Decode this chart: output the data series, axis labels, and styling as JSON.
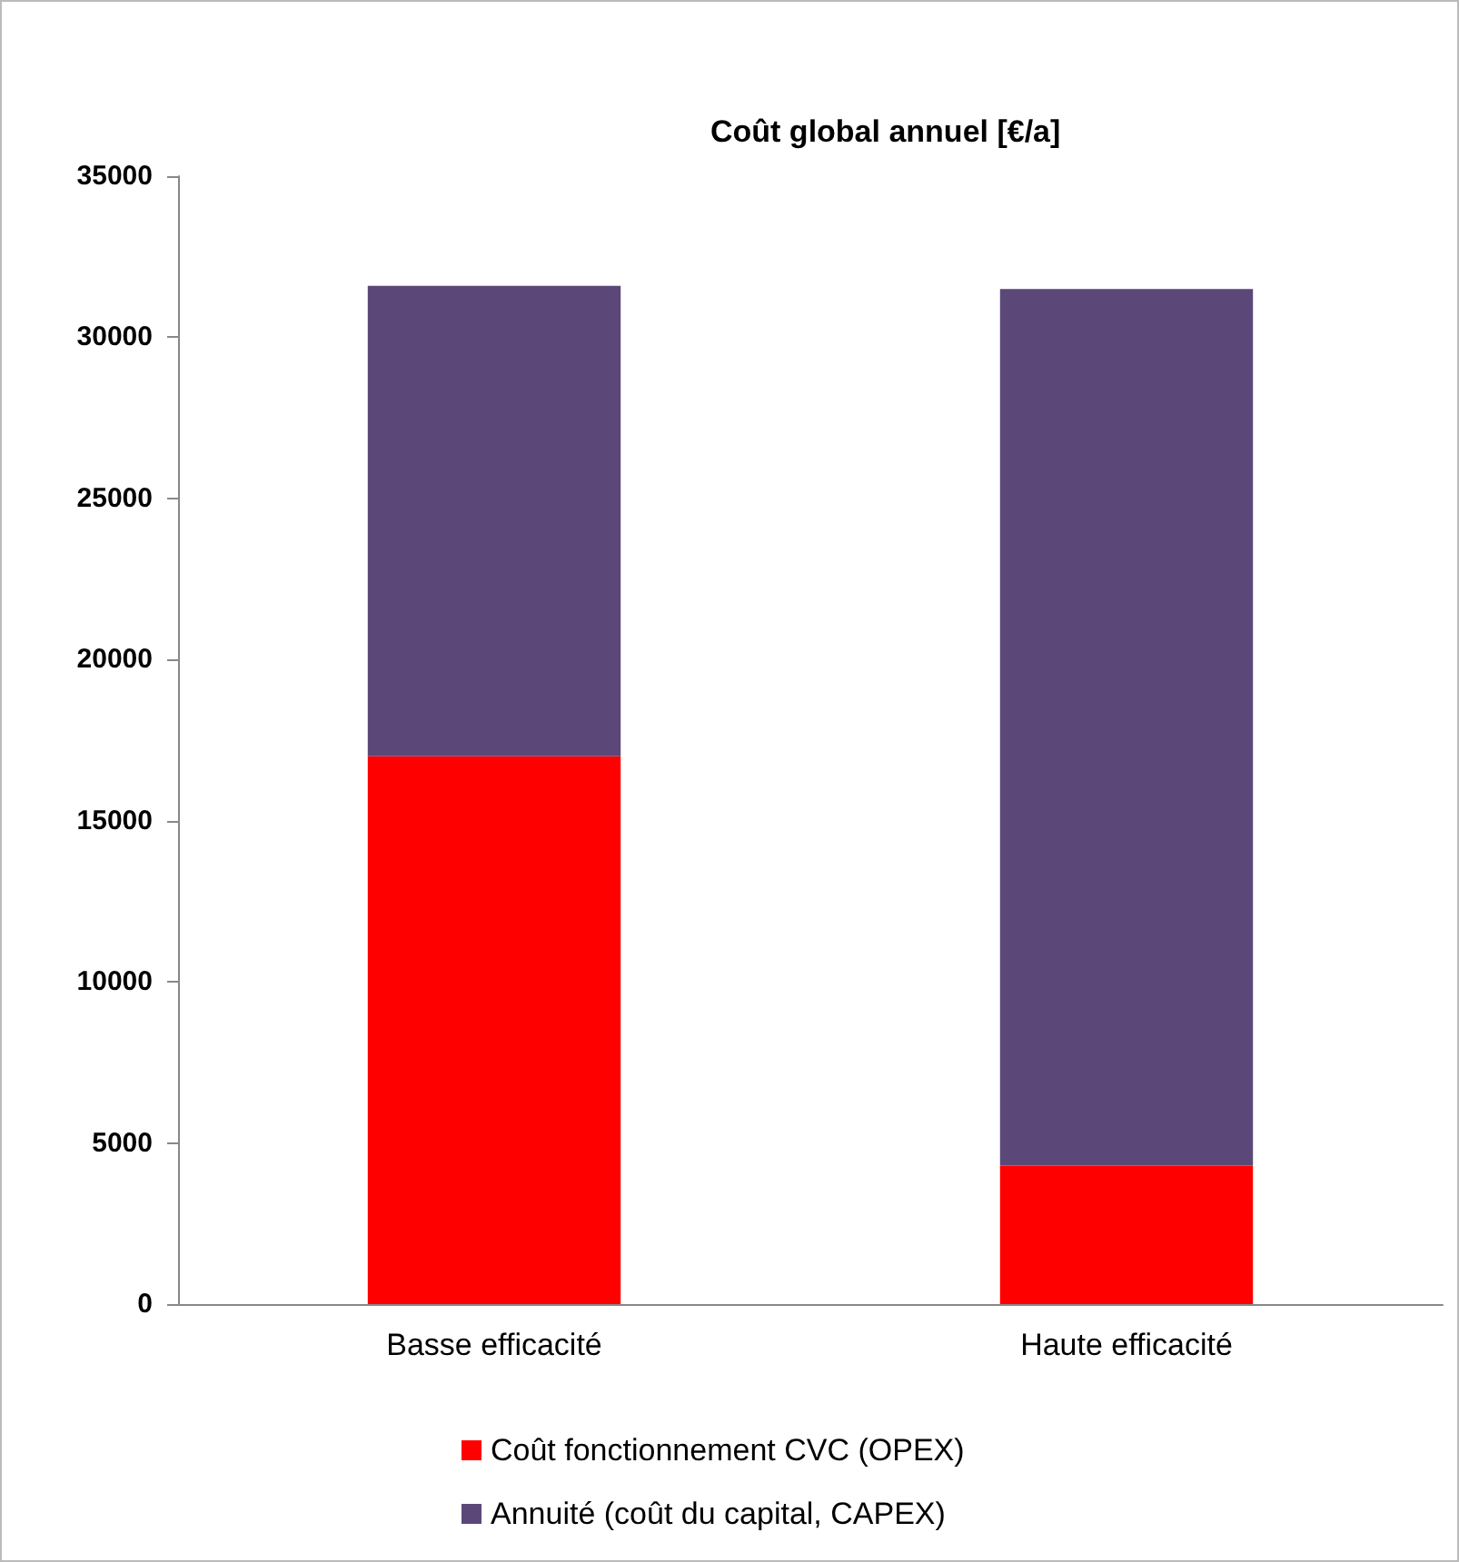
{
  "chart_data": {
    "type": "bar",
    "title": "Coût global annuel [€/a]",
    "categories": [
      "Basse efficacité",
      "Haute efficacité"
    ],
    "series": [
      {
        "name": "Coût fonctionnement CVC (OPEX)",
        "color": "#ff0000",
        "values": [
          17000,
          4300
        ]
      },
      {
        "name": "Annuité (coût du capital, CAPEX)",
        "color": "#5b4878",
        "values": [
          14600,
          27200
        ]
      }
    ],
    "stacked": true,
    "ylim": [
      0,
      35000
    ],
    "yticks": [
      0,
      5000,
      10000,
      15000,
      20000,
      25000,
      30000,
      35000
    ],
    "grid": false,
    "legend": "bottom"
  }
}
